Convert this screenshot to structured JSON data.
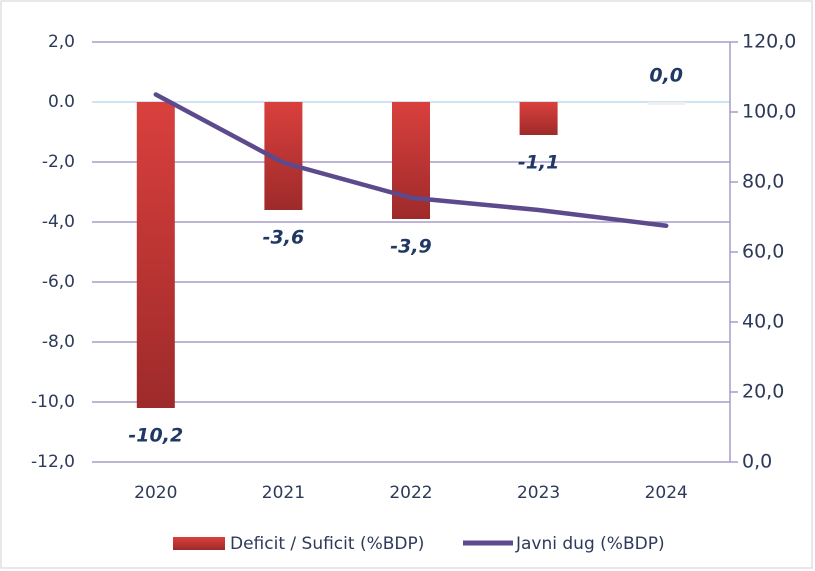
{
  "chart_data": {
    "type": "bar",
    "categories": [
      "2020",
      "2021",
      "2022",
      "2023",
      "2024"
    ],
    "series": [
      {
        "name": "Deficit / Suficit (%BDP)",
        "type": "bar",
        "color": "#c0302e",
        "values": [
          -10.2,
          -3.6,
          -3.9,
          -1.1,
          0.0
        ],
        "value_labels": [
          "-10,2",
          "-3,6",
          "-3,9",
          "-1,1",
          "0,0"
        ]
      },
      {
        "name": "Javni dug (%BDP)",
        "type": "line",
        "axis": "y2",
        "color": "#5c4a8c",
        "values": [
          105,
          85.5,
          75.5,
          72,
          67.5
        ]
      }
    ],
    "ylim": [
      -12,
      2
    ],
    "yticks": [
      {
        "value": 2,
        "label": "2,0"
      },
      {
        "value": 0,
        "label": "0.0"
      },
      {
        "value": -2,
        "label": "-2,0"
      },
      {
        "value": -4,
        "label": "-4,0"
      },
      {
        "value": -6,
        "label": "-6,0"
      },
      {
        "value": -8,
        "label": "-8,0"
      },
      {
        "value": -10,
        "label": "-10,0"
      },
      {
        "value": -12,
        "label": "-12,0"
      }
    ],
    "y2lim": [
      0,
      120
    ],
    "y2ticks": [
      {
        "value": 0,
        "label": "0,0"
      },
      {
        "value": 20,
        "label": "20,0"
      },
      {
        "value": 40,
        "label": "40,0"
      },
      {
        "value": 60,
        "label": "60,0"
      },
      {
        "value": 80,
        "label": "80,0"
      },
      {
        "value": 100,
        "label": "100,0"
      },
      {
        "value": 120,
        "label": "120,0"
      }
    ],
    "grid": true,
    "legend": "bottom"
  }
}
